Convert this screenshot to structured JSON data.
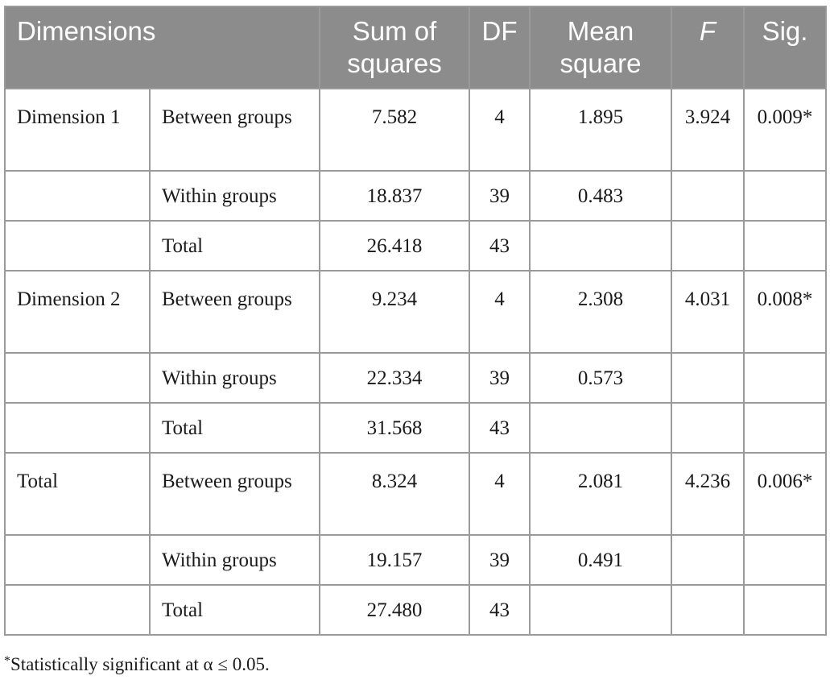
{
  "table": {
    "headers": {
      "dimensions": "Dimensions",
      "sum_of_squares": "Sum of squares",
      "df": "DF",
      "mean_square": "Mean square",
      "f": "F",
      "sig": "Sig."
    },
    "rows": [
      {
        "dimension": "Dimension 1",
        "source": "Between groups",
        "ss": "7.582",
        "df": "4",
        "ms": "1.895",
        "f": "3.924",
        "sig": "0.009*"
      },
      {
        "dimension": "",
        "source": "Within groups",
        "ss": "18.837",
        "df": "39",
        "ms": "0.483",
        "f": "",
        "sig": ""
      },
      {
        "dimension": "",
        "source": "Total",
        "ss": "26.418",
        "df": "43",
        "ms": "",
        "f": "",
        "sig": ""
      },
      {
        "dimension": "Dimension 2",
        "source": "Between groups",
        "ss": "9.234",
        "df": "4",
        "ms": "2.308",
        "f": "4.031",
        "sig": "0.008*"
      },
      {
        "dimension": "",
        "source": "Within groups",
        "ss": "22.334",
        "df": "39",
        "ms": "0.573",
        "f": "",
        "sig": ""
      },
      {
        "dimension": "",
        "source": "Total",
        "ss": "31.568",
        "df": "43",
        "ms": "",
        "f": "",
        "sig": ""
      },
      {
        "dimension": "Total",
        "source": "Between groups",
        "ss": "8.324",
        "df": "4",
        "ms": "2.081",
        "f": "4.236",
        "sig": "0.006*"
      },
      {
        "dimension": "",
        "source": "Within groups",
        "ss": "19.157",
        "df": "39",
        "ms": "0.491",
        "f": "",
        "sig": ""
      },
      {
        "dimension": "",
        "source": "Total",
        "ss": "27.480",
        "df": "43",
        "ms": "",
        "f": "",
        "sig": ""
      }
    ]
  },
  "footnote": {
    "marker": "*",
    "text": "Statistically significant at α  ≤ 0.05."
  },
  "colors": {
    "header_bg": "#8c8c8c",
    "header_text": "#ffffff",
    "border": "#9a9a9a"
  }
}
